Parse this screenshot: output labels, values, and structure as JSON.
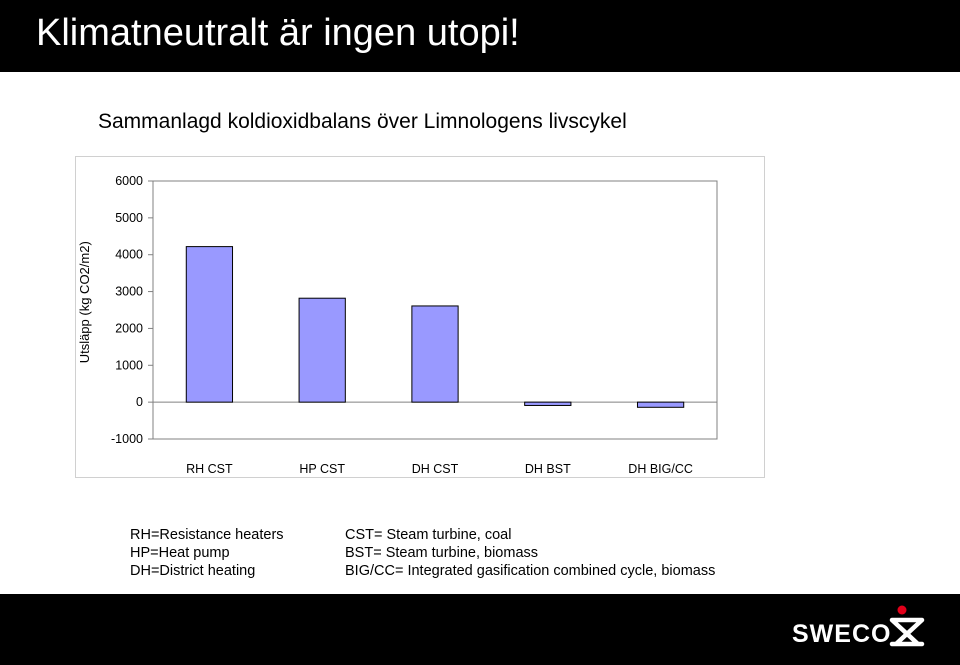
{
  "slide": {
    "title": "Klimatneutralt är ingen utopi!"
  },
  "chart_data": {
    "type": "bar",
    "title": "Sammanlagd koldioxidbalans över Limnologens livscykel",
    "xlabel": "",
    "ylabel": "Utsläpp (kg CO2/m2)",
    "ylim": [
      -1000,
      6000
    ],
    "yticks": [
      6000,
      5000,
      4000,
      3000,
      2000,
      1000,
      0,
      -1000
    ],
    "categories": [
      "RH CST",
      "HP CST",
      "DH CST",
      "DH BST",
      "DH BIG/CC"
    ],
    "values": [
      4220,
      2820,
      2610,
      -90,
      -140
    ],
    "bar_color": "#9999ff",
    "grid": false,
    "legend": "none"
  },
  "legend_notes": {
    "left": [
      "RH=Resistance heaters",
      "HP=Heat pump",
      "DH=District heating"
    ],
    "right": [
      "CST= Steam turbine, coal",
      "BST= Steam turbine, biomass",
      "BIG/CC= Integrated gasification combined cycle, biomass"
    ]
  },
  "logo": {
    "text": "SWECO",
    "icon": "sweco-logo-icon",
    "accent_color": "#e2001a"
  }
}
